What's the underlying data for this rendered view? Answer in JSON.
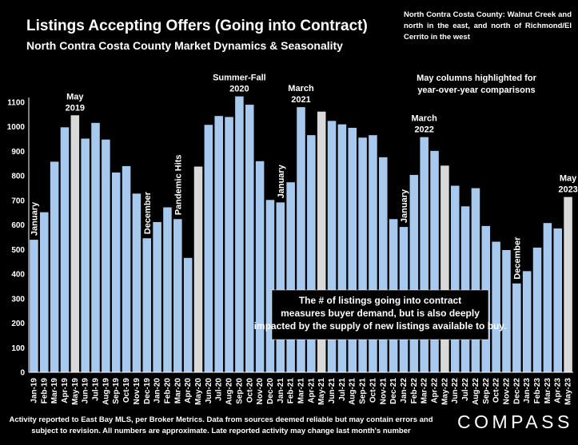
{
  "chart_data": {
    "type": "bar",
    "title": "Listings Accepting Offers (Going into Contract)",
    "subtitle": "North Contra Costa County Market Dynamics & Seasonality",
    "ylim": [
      0,
      1100
    ],
    "yticks": [
      0,
      100,
      200,
      300,
      400,
      500,
      600,
      700,
      800,
      900,
      1000,
      1100
    ],
    "categories": [
      "Jan-19",
      "Feb-19",
      "Mar-19",
      "Apr-19",
      "May-19",
      "Jun-19",
      "Jul-19",
      "Aug-19",
      "Sep-19",
      "Oct-19",
      "Nov-19",
      "Dec-19",
      "Jan-20",
      "Feb-20",
      "Mar-20",
      "Apr-20",
      "May-20",
      "Jun-20",
      "Jul-20",
      "Aug-20",
      "Sep-20",
      "Oct-20",
      "Nov-20",
      "Dec-20",
      "Jan-21",
      "Feb-21",
      "Mar-21",
      "Apr-21",
      "May-21",
      "Jun-21",
      "Jul-21",
      "Aug-21",
      "Sep-21",
      "Oct-21",
      "Nov-21",
      "Dec-21",
      "Jan-22",
      "Feb-22",
      "Mar-22",
      "Apr-22",
      "May-22",
      "Jun-22",
      "Jul-22",
      "Aug-22",
      "Sep-22",
      "Oct-22",
      "Nov-22",
      "Dec-22",
      "Jan-23",
      "Feb-23",
      "Mar-23",
      "Apr-23",
      "May-23"
    ],
    "values": [
      540,
      652,
      858,
      998,
      1047,
      952,
      1016,
      948,
      814,
      840,
      728,
      546,
      612,
      672,
      624,
      466,
      838,
      1008,
      1044,
      1040,
      1124,
      1090,
      860,
      702,
      692,
      774,
      1080,
      966,
      1062,
      1024,
      1010,
      996,
      956,
      966,
      876,
      624,
      592,
      804,
      958,
      902,
      842,
      760,
      676,
      750,
      596,
      532,
      498,
      362,
      412,
      508,
      608,
      586,
      714
    ],
    "highlighted": [
      "May-19",
      "May-20",
      "May-21",
      "May-22",
      "May-23"
    ],
    "colors": {
      "bar": "#a7c9ee",
      "highlight": "#d9d9d9",
      "background": "#000000",
      "text": "#ffffff"
    },
    "annotations": [
      {
        "text": "January",
        "at": "Jan-19",
        "orientation": "vertical"
      },
      {
        "text": "May 2019",
        "at": "May-19",
        "orientation": "horizontal"
      },
      {
        "text": "December",
        "at": "Dec-19",
        "orientation": "vertical"
      },
      {
        "text": "Pandemic Hits",
        "at": "Mar-20",
        "orientation": "vertical"
      },
      {
        "text": "Summer-Fall 2020",
        "at": "Sep-20",
        "orientation": "horizontal"
      },
      {
        "text": "January",
        "at": "Jan-21",
        "orientation": "vertical"
      },
      {
        "text": "March 2021",
        "at": "Mar-21",
        "orientation": "horizontal"
      },
      {
        "text": "March 2022",
        "at": "Mar-22",
        "orientation": "horizontal"
      },
      {
        "text": "January",
        "at": "Jan-22",
        "orientation": "vertical"
      },
      {
        "text": "December",
        "at": "Dec-22",
        "orientation": "vertical"
      },
      {
        "text": "May 2023",
        "at": "May-23",
        "orientation": "horizontal"
      }
    ],
    "highlight_note": "May columns highlighted for year-over-year comparisons",
    "callout": "The # of listings going into contract measures buyer demand, but is also deeply impacted by the supply of new listings available to buy."
  },
  "region_note": "North Contra Costa County: Walnut Creek and north in the east, and north of Richmond/El Cerrito in the west",
  "footnote": "Activity reported to East Bay MLS, per Broker Metrics. Data from sources deemed reliable but may contain errors and subject to revision. All numbers are approximate. Late reported activity may change last month's number",
  "logo": "COMPASS"
}
